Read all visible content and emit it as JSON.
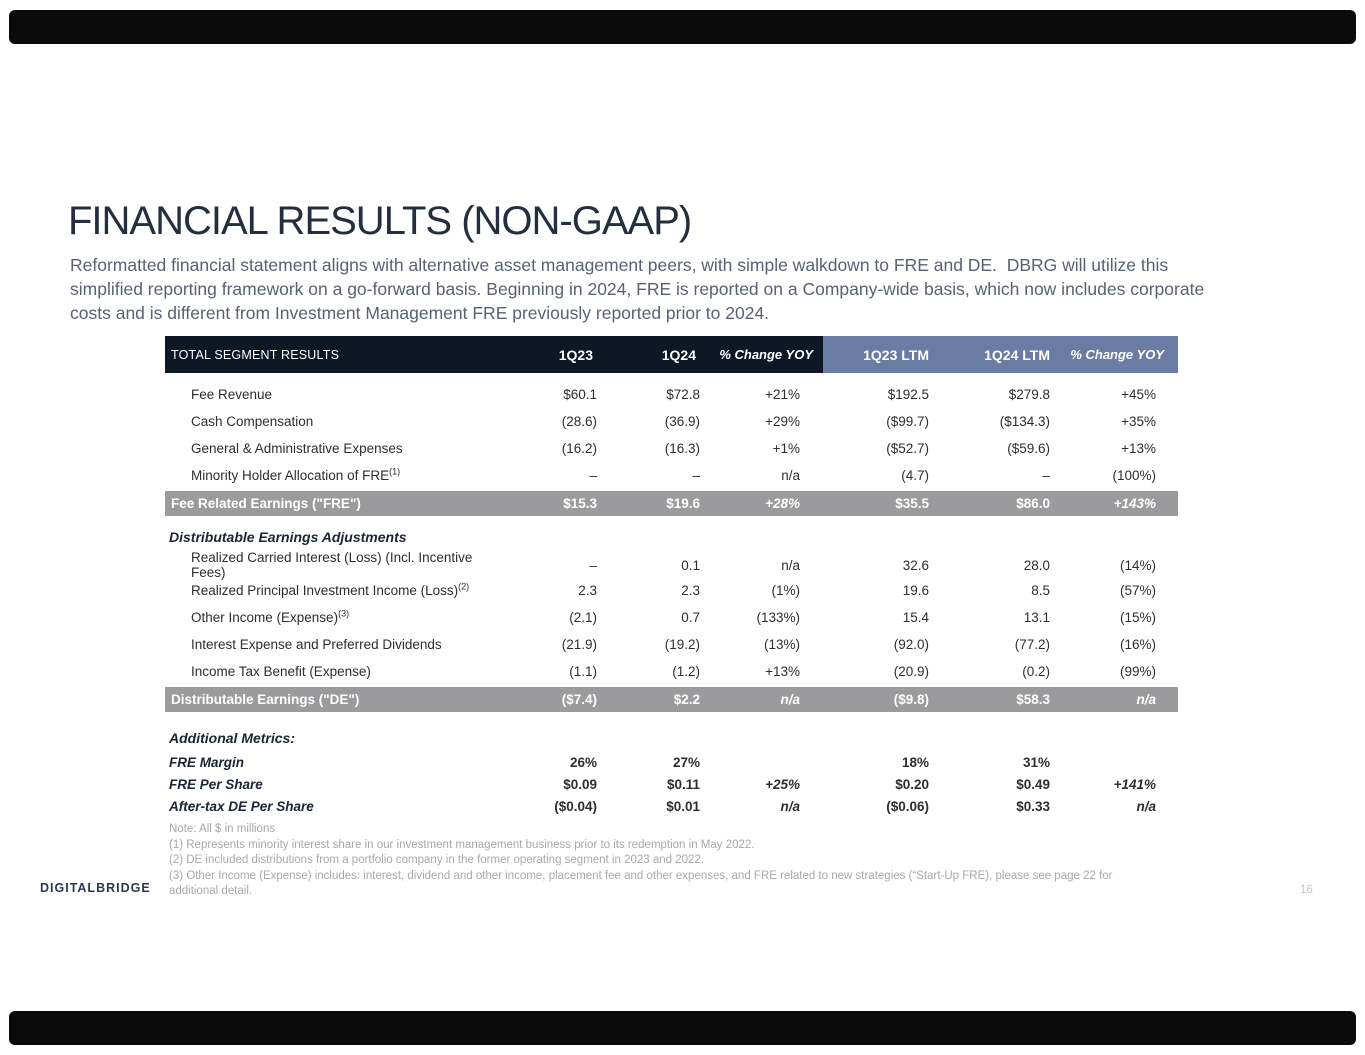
{
  "title": "FINANCIAL RESULTS (NON-GAAP)",
  "intro_lines": [
    "Reformatted financial statement aligns with alternative asset management peers, with simple walkdown to FRE and DE.  DBRG will utilize this",
    "simplified reporting framework on a go-forward basis. Beginning in 2024, FRE is reported on a Company-wide basis, which now includes corporate",
    "costs and is different from Investment Management FRE previously reported prior to 2024."
  ],
  "colors": {
    "header_dark": "#0D1725",
    "header_blue": "#6A7CA3",
    "band_gray": "#9B9B9D"
  },
  "table": {
    "header_label": "TOTAL SEGMENT RESULTS",
    "columns": [
      "1Q23",
      "1Q24",
      "% Change YOY",
      "1Q23 LTM",
      "1Q24 LTM",
      "% Change YOY"
    ],
    "rows": [
      {
        "type": "item",
        "label": "Fee Revenue",
        "values": [
          "$60.1",
          "$72.8",
          "+21%",
          "$192.5",
          "$279.8",
          "+45%"
        ]
      },
      {
        "type": "item",
        "label": "Cash Compensation",
        "values": [
          "(28.6)",
          "(36.9)",
          "+29%",
          "($99.7)",
          "($134.3)",
          "+35%"
        ]
      },
      {
        "type": "item",
        "label": "General & Administrative Expenses",
        "values": [
          "(16.2)",
          "(16.3)",
          "+1%",
          "($52.7)",
          "($59.6)",
          "+13%"
        ]
      },
      {
        "type": "item",
        "label": "Minority Holder Allocation of FRE",
        "sup": "(1)",
        "values": [
          "–",
          "–",
          "n/a",
          "(4.7)",
          "–",
          "(100%)"
        ]
      },
      {
        "type": "total",
        "label": "Fee Related Earnings (\"FRE\")",
        "values": [
          "$15.3",
          "$19.6",
          "+28%",
          "$35.5",
          "$86.0",
          "+143%"
        ]
      },
      {
        "type": "section",
        "label": "Distributable Earnings Adjustments"
      },
      {
        "type": "item",
        "label": "Realized Carried Interest (Loss) (Incl. Incentive Fees)",
        "values": [
          "–",
          "0.1",
          "n/a",
          "32.6",
          "28.0",
          "(14%)"
        ]
      },
      {
        "type": "item",
        "label": "Realized Principal Investment Income (Loss)",
        "sup": "(2)",
        "values": [
          "2.3",
          "2.3",
          "(1%)",
          "19.6",
          "8.5",
          "(57%)"
        ]
      },
      {
        "type": "item",
        "label": "Other Income (Expense)",
        "sup": "(3)",
        "values": [
          "(2.1)",
          "0.7",
          "(133%)",
          "15.4",
          "13.1",
          "(15%)"
        ]
      },
      {
        "type": "item",
        "label": "Interest Expense and Preferred Dividends",
        "values": [
          "(21.9)",
          "(19.2)",
          "(13%)",
          "(92.0)",
          "(77.2)",
          "(16%)"
        ]
      },
      {
        "type": "item",
        "label": "Income Tax Benefit (Expense)",
        "values": [
          "(1.1)",
          "(1.2)",
          "+13%",
          "(20.9)",
          "(0.2)",
          "(99%)"
        ]
      },
      {
        "type": "total",
        "label": "Distributable Earnings (\"DE\")",
        "values": [
          "($7.4)",
          "$2.2",
          "n/a",
          "($9.8)",
          "$58.3",
          "n/a"
        ]
      },
      {
        "type": "metrics-section",
        "label": "Additional Metrics:"
      },
      {
        "type": "metric",
        "label": "FRE Margin",
        "values": [
          "26%",
          "27%",
          "",
          "18%",
          "31%",
          ""
        ]
      },
      {
        "type": "metric",
        "label": "FRE Per Share",
        "values": [
          "$0.09",
          "$0.11",
          "+25%",
          "$0.20",
          "$0.49",
          "+141%"
        ]
      },
      {
        "type": "metric",
        "label": "After-tax DE Per Share",
        "values": [
          "($0.04)",
          "$0.01",
          "n/a",
          "($0.06)",
          "$0.33",
          "n/a"
        ]
      }
    ]
  },
  "notes": [
    "Note: All $ in millions",
    "(1) Represents minority interest share in our investment management business prior to its redemption in May 2022.",
    "(2) DE included distributions from a portfolio company in the former operating segment in 2023 and 2022.",
    "(3) Other Income (Expense) includes: interest, dividend and other income, placement fee and other expenses, and FRE related to new strategies (“Start-Up FRE), please see page 22 for additional detail."
  ],
  "logo": {
    "part1": "DIGITAL",
    "part2": "BRIDGE"
  },
  "page_number": "16"
}
